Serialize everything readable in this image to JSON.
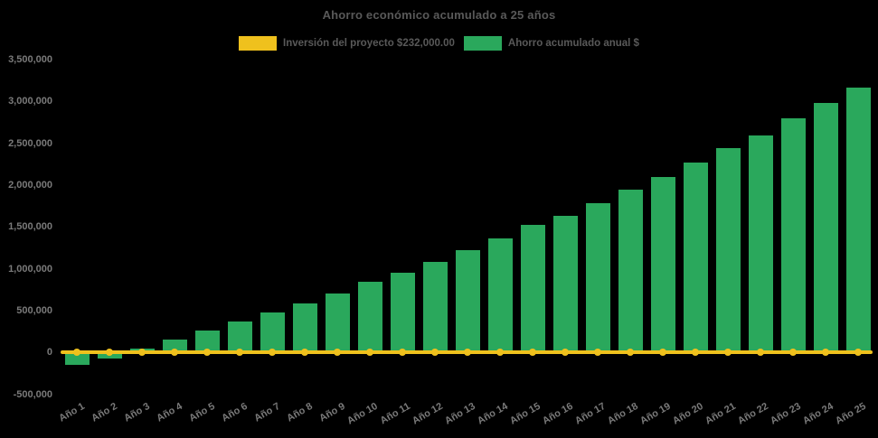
{
  "chart_data": {
    "type": "bar",
    "title": "Ahorro económico acumulado a 25 años",
    "categories": [
      "Año 1",
      "Año 2",
      "Año 3",
      "Año 4",
      "Año 5",
      "Año 6",
      "Año 7",
      "Año 8",
      "Año 9",
      "Año 10",
      "Año 11",
      "Año 12",
      "Año 13",
      "Año 14",
      "Año 15",
      "Año 16",
      "Año 17",
      "Año 18",
      "Año 19",
      "Año 20",
      "Año 21",
      "Año 22",
      "Año 23",
      "Año 24",
      "Año 25"
    ],
    "series": [
      {
        "name": "Inversión del proyecto $232,000.00",
        "type": "line",
        "marker": "circle",
        "color": "#efc11d",
        "values": [
          0,
          0,
          0,
          0,
          0,
          0,
          0,
          0,
          0,
          0,
          0,
          0,
          0,
          0,
          0,
          0,
          0,
          0,
          0,
          0,
          0,
          0,
          0,
          0,
          0
        ]
      },
      {
        "name": "Ahorro acumulado anual $",
        "type": "bar",
        "color": "#2aa85c",
        "values": [
          -150000,
          -70000,
          50000,
          150000,
          260000,
          370000,
          475000,
          580000,
          700000,
          840000,
          955000,
          1080000,
          1220000,
          1360000,
          1520000,
          1635000,
          1780000,
          1950000,
          2100000,
          2270000,
          2440000,
          2595000,
          2795000,
          2985000,
          3170000
        ]
      }
    ],
    "ylim": [
      -500000,
      3500000
    ],
    "ytick_step": 500000,
    "yticks": [
      {
        "label": "3,500,000",
        "value": 3500000
      },
      {
        "label": "3,000,000",
        "value": 3000000
      },
      {
        "label": "2,500,000",
        "value": 2500000
      },
      {
        "label": "2,000,000",
        "value": 2000000
      },
      {
        "label": "1,500,000",
        "value": 1500000
      },
      {
        "label": "1,000,000",
        "value": 1000000
      },
      {
        "label": "500,000",
        "value": 500000
      },
      {
        "label": "0",
        "value": 0
      },
      {
        "label": "-500,000",
        "value": -500000
      }
    ],
    "grid": false,
    "legend_position": "top-center",
    "x_label_rotation_deg": -30,
    "colors": {
      "background": "#000000",
      "title_text": "#595959",
      "legend_text": "#595959",
      "axis_text": "#7a7a7a",
      "bar_fill": "#2aa85c",
      "line_stroke": "#efc11d"
    }
  }
}
